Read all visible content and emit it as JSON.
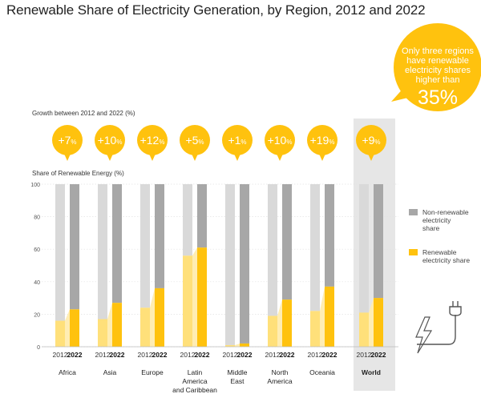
{
  "title": "Renewable Share of Electricity Generation, by Region, 2012 and 2022",
  "callout": {
    "text": "Only three regions have renewable electricity shares higher than",
    "value": "35%"
  },
  "colors": {
    "renewable": "#FFC20E",
    "renewable_2012": "#FFE07A",
    "nonrenewable": "#A7A7A7",
    "nonrenewable_2012": "#D9D9D9",
    "bubble": "#FFC20E",
    "world_band": "#E6E6E6"
  },
  "chart_data": {
    "type": "bar",
    "title": "Renewable Share of Electricity Generation, by Region, 2012 and 2022",
    "growth_label": "Growth between 2012 and 2022 (%)",
    "ylabel": "Share of Renewable Energy (%)",
    "ylim": [
      0,
      100
    ],
    "yticks": [
      0,
      20,
      40,
      60,
      80,
      100
    ],
    "years": [
      "2012",
      "2022"
    ],
    "categories": [
      "Africa",
      "Asia",
      "Europe",
      "Latin America and Caribbean",
      "Middle East",
      "North America",
      "Oceania",
      "World"
    ],
    "category_lines": [
      [
        "Africa"
      ],
      [
        "Asia"
      ],
      [
        "Europe"
      ],
      [
        "Latin",
        "America",
        "and Caribbean"
      ],
      [
        "Middle",
        "East"
      ],
      [
        "North",
        "America"
      ],
      [
        "Oceania"
      ],
      [
        "World"
      ]
    ],
    "growth": [
      "+7",
      "+10",
      "+12",
      "+5",
      "+1",
      "+10",
      "+19",
      "+9"
    ],
    "growth_unit": "%",
    "series": [
      {
        "name": "Renewable electricity share 2012",
        "values": [
          16,
          17,
          24,
          56,
          1,
          19,
          22,
          21
        ]
      },
      {
        "name": "Renewable electricity share 2022",
        "values": [
          23,
          27,
          36,
          61,
          2,
          29,
          37,
          30
        ]
      }
    ],
    "legend": [
      {
        "label": "Non-renewable electricity share",
        "lines": [
          "Non-renewable",
          "electricity",
          "share"
        ],
        "color": "#A7A7A7"
      },
      {
        "label": "Renewable electricity share",
        "lines": [
          "Renewable",
          "electricity share"
        ],
        "color": "#FFC20E"
      }
    ]
  }
}
